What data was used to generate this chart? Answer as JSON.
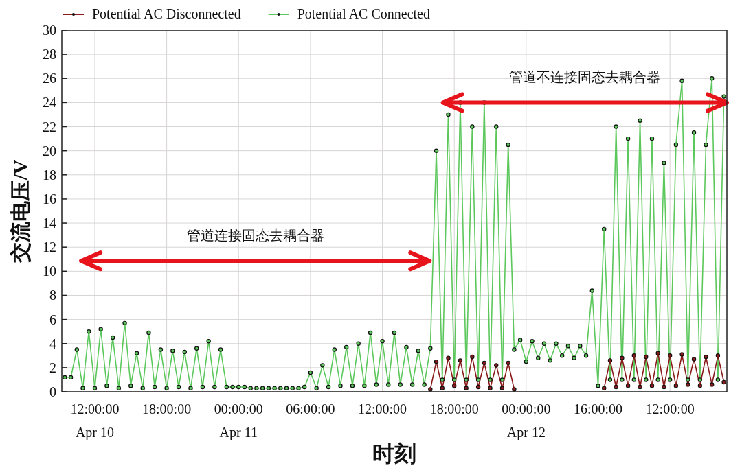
{
  "chart_data": {
    "type": "line",
    "xlabel": "时刻",
    "ylabel": "交流电压/V",
    "ylim": [
      0,
      30
    ],
    "yticks": [
      0,
      2,
      4,
      6,
      8,
      10,
      12,
      14,
      16,
      18,
      20,
      22,
      24,
      26,
      28,
      30
    ],
    "categories": [
      null,
      null,
      null,
      null,
      null,
      "12:00:00\nApr 10",
      null,
      null,
      null,
      null,
      null,
      null,
      null,
      null,
      null,
      null,
      null,
      "18:00:00",
      null,
      null,
      null,
      null,
      null,
      null,
      null,
      null,
      null,
      null,
      null,
      "00:00:00\nApr 11",
      null,
      null,
      null,
      null,
      null,
      null,
      null,
      null,
      null,
      null,
      null,
      "06:00:00",
      null,
      null,
      null,
      null,
      null,
      null,
      null,
      null,
      null,
      null,
      null,
      "12:00:00",
      null,
      null,
      null,
      null,
      null,
      null,
      null,
      null,
      null,
      null,
      null,
      "18:00:00",
      null,
      null,
      null,
      null,
      null,
      null,
      null,
      null,
      null,
      null,
      null,
      "00:00:00\nApr 12",
      null,
      null,
      null,
      null,
      null,
      null,
      null,
      null,
      null,
      null,
      null,
      "16:00:00",
      null,
      null,
      null,
      null,
      null,
      null,
      null,
      null,
      null,
      null,
      null,
      "12:00:00",
      null,
      null,
      null,
      null,
      null,
      null,
      null,
      null,
      null
    ],
    "grid": true,
    "legend": "top",
    "marker": "circle",
    "line_style": "solid",
    "series": [
      {
        "name": "Potential AC Disconnected",
        "color": "#8b1a1a",
        "values": [
          null,
          null,
          null,
          null,
          null,
          null,
          null,
          null,
          null,
          null,
          null,
          null,
          null,
          null,
          null,
          null,
          null,
          null,
          null,
          null,
          null,
          null,
          null,
          null,
          null,
          null,
          null,
          null,
          null,
          null,
          null,
          null,
          null,
          null,
          null,
          null,
          null,
          null,
          null,
          null,
          null,
          null,
          null,
          null,
          null,
          null,
          null,
          null,
          null,
          null,
          null,
          null,
          null,
          null,
          null,
          null,
          null,
          null,
          null,
          null,
          null,
          0.2,
          2.5,
          0.3,
          2.8,
          0.5,
          2.6,
          0.3,
          2.9,
          0.4,
          2.4,
          0.3,
          2.2,
          0.3,
          2.4,
          0.2,
          null,
          null,
          null,
          null,
          null,
          null,
          null,
          null,
          null,
          null,
          null,
          null,
          null,
          null,
          0.3,
          2.6,
          0.4,
          2.8,
          0.5,
          3.0,
          0.4,
          2.9,
          0.5,
          3.2,
          0.4,
          3.0,
          0.5,
          3.1,
          0.6,
          2.7,
          0.5,
          2.9,
          0.6,
          3.0,
          0.8
        ]
      },
      {
        "name": "Potential AC Connected",
        "color": "#5cc85c",
        "values": [
          1.2,
          1.2,
          3.5,
          0.3,
          5.0,
          0.3,
          5.2,
          0.5,
          4.5,
          0.3,
          5.7,
          0.5,
          3.2,
          0.3,
          4.9,
          0.4,
          3.5,
          0.3,
          3.4,
          0.4,
          3.3,
          0.3,
          3.6,
          0.4,
          4.2,
          0.4,
          3.5,
          0.4,
          0.4,
          0.4,
          0.4,
          0.3,
          0.3,
          0.3,
          0.3,
          0.3,
          0.3,
          0.3,
          0.3,
          0.3,
          0.4,
          1.6,
          0.3,
          2.2,
          0.4,
          3.5,
          0.5,
          3.7,
          0.5,
          4.0,
          0.5,
          4.9,
          0.6,
          4.2,
          0.6,
          4.9,
          0.6,
          3.7,
          0.6,
          3.4,
          0.6,
          3.6,
          20.0,
          1.0,
          23.0,
          1.0,
          24.0,
          1.0,
          22.0,
          1.0,
          24.0,
          1.0,
          22.0,
          1.0,
          20.5,
          3.5,
          4.3,
          2.5,
          4.2,
          2.8,
          4.0,
          2.6,
          4.0,
          3.0,
          3.8,
          2.8,
          3.8,
          3.0,
          8.4,
          0.5,
          13.5,
          1.0,
          22.0,
          1.0,
          21.0,
          1.0,
          22.5,
          1.0,
          21.0,
          1.0,
          19.0,
          1.0,
          20.5,
          25.8,
          1.0,
          21.5,
          1.0,
          20.5,
          26.0,
          1.0,
          24.5
        ]
      }
    ],
    "annotations": [
      "管道连接固态去耦合器",
      "管道不连接固态去耦合器"
    ]
  }
}
